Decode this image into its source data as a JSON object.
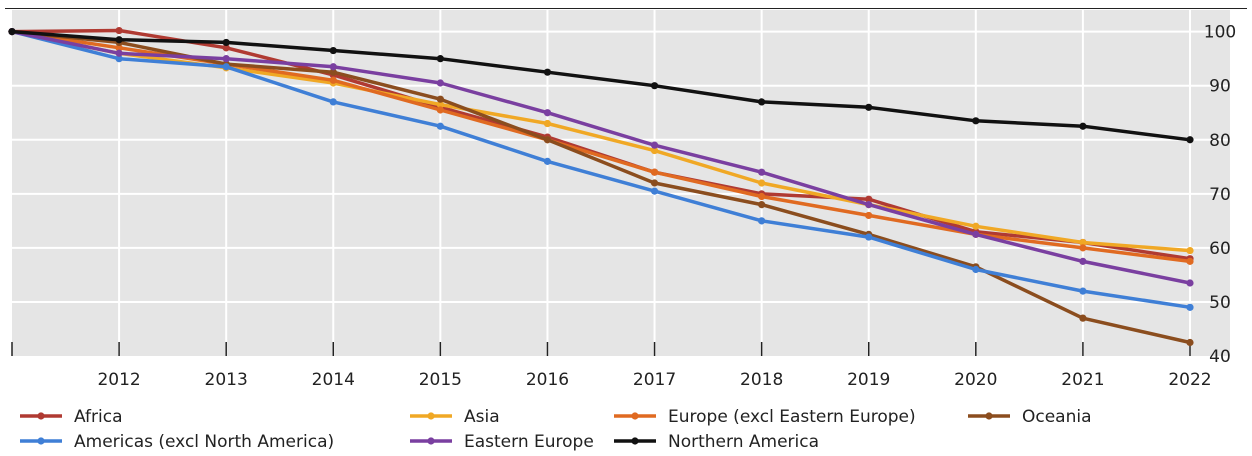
{
  "chart_data": {
    "type": "line",
    "title": "",
    "xlabel": "",
    "ylabel": "",
    "x": [
      "2011",
      "2012",
      "2013",
      "2014",
      "2015",
      "2016",
      "2017",
      "2018",
      "2019",
      "2020",
      "2021",
      "2022"
    ],
    "x_tick_labels": [
      "2012",
      "2013",
      "2014",
      "2015",
      "2016",
      "2017",
      "2018",
      "2019",
      "2020",
      "2021",
      "2022"
    ],
    "ylim": [
      40,
      104
    ],
    "y_ticks": [
      40,
      50,
      60,
      70,
      80,
      90,
      100
    ],
    "y_axis_side": "right",
    "grid": true,
    "legend_position": "bottom",
    "background": "#e5e5e5",
    "series": [
      {
        "name": "Africa",
        "color": "#b03a32",
        "values": [
          100,
          100.2,
          97,
          92,
          86,
          80.5,
          74,
          70,
          69,
          63,
          61,
          58
        ]
      },
      {
        "name": "Asia",
        "color": "#f0a825",
        "values": [
          100,
          96,
          93.3,
          90.5,
          86.5,
          83,
          78,
          72,
          68,
          64,
          61,
          59.5
        ]
      },
      {
        "name": "Europe (excl Eastern Europe)",
        "color": "#e06a21",
        "values": [
          100,
          97,
          94,
          91,
          85.5,
          80,
          74,
          69.5,
          66,
          62.5,
          60,
          57.5
        ]
      },
      {
        "name": "Oceania",
        "color": "#8b4d1e",
        "values": [
          100,
          98,
          94,
          92.5,
          87.5,
          80,
          72,
          68,
          62.5,
          56.5,
          47,
          42.5
        ]
      },
      {
        "name": "Americas (excl North America)",
        "color": "#3f7fd6",
        "values": [
          100,
          95,
          93.5,
          87,
          82.5,
          76,
          70.5,
          65,
          62,
          56,
          52,
          49
        ]
      },
      {
        "name": "Eastern Europe",
        "color": "#7a3fa0",
        "values": [
          100,
          96,
          95,
          93.5,
          90.5,
          85,
          79,
          74,
          68,
          62.5,
          57.5,
          53.5
        ]
      },
      {
        "name": "Northern America",
        "color": "#111111",
        "values": [
          100,
          98.5,
          98,
          96.5,
          95,
          92.5,
          90,
          87,
          86,
          83.5,
          82.5,
          80
        ]
      }
    ]
  }
}
